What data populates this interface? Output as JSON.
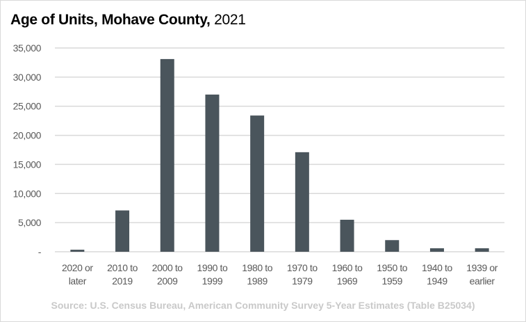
{
  "chart_data": {
    "type": "bar",
    "title_bold": "Age of Units, Mohave County,",
    "title_rest": "2021",
    "source": "Source: U.S. Census Bureau, American Community Survey 5-Year Estimates (Table B25034)",
    "categories": [
      [
        "2020 or",
        "later"
      ],
      [
        "2010 to",
        "2019"
      ],
      [
        "2000 to",
        "2009"
      ],
      [
        "1990 to",
        "1999"
      ],
      [
        "1980 to",
        "1989"
      ],
      [
        "1970 to",
        "1979"
      ],
      [
        "1960 to",
        "1969"
      ],
      [
        "1950 to",
        "1959"
      ],
      [
        "1940 to",
        "1949"
      ],
      [
        "1939 or",
        "earlier"
      ]
    ],
    "values": [
      350,
      7100,
      33100,
      27000,
      23400,
      17100,
      5500,
      2000,
      600,
      600
    ],
    "ylim": [
      0,
      35000
    ],
    "yticks": [
      0,
      5000,
      10000,
      15000,
      20000,
      25000,
      30000,
      35000
    ],
    "ytick_labels": [
      "-",
      "5,000",
      "10,000",
      "15,000",
      "20,000",
      "25,000",
      "30,000",
      "35,000"
    ],
    "grid": true,
    "legend": "none",
    "bar_color": "#4a555c",
    "grid_color": "#d9d9d9"
  }
}
